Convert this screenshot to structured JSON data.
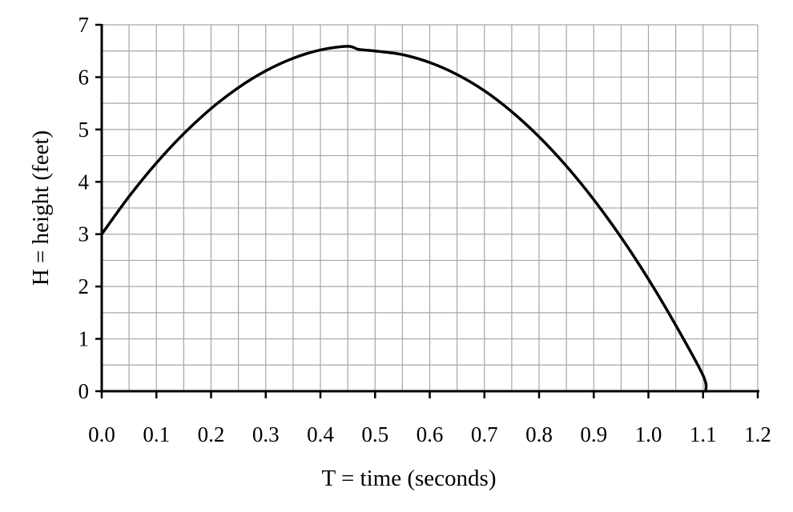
{
  "chart_data": {
    "type": "line",
    "title": "",
    "xlabel": "T = time (seconds)",
    "ylabel": "H = height (feet)",
    "xlim": [
      0,
      1.2
    ],
    "ylim": [
      0,
      7
    ],
    "x_ticks": [
      "0.0",
      "0.1",
      "0.2",
      "0.3",
      "0.4",
      "0.5",
      "0.6",
      "0.7",
      "0.8",
      "0.9",
      "1.0",
      "1.1",
      "1.2"
    ],
    "y_ticks": [
      "0",
      "1",
      "2",
      "3",
      "4",
      "5",
      "6",
      "7"
    ],
    "grid": true,
    "minor_grid": {
      "x_step": 0.05,
      "y_step": 0.5
    },
    "series": [
      {
        "color": "#000000",
        "x": [
          0.0,
          0.05,
          0.1,
          0.15,
          0.2,
          0.25,
          0.3,
          0.35,
          0.4,
          0.45,
          0.47,
          0.5,
          0.55,
          0.6,
          0.65,
          0.7,
          0.75,
          0.8,
          0.85,
          0.9,
          0.95,
          1.0,
          1.05,
          1.1,
          1.105
        ],
        "y": [
          3.0,
          3.72,
          4.36,
          4.92,
          5.4,
          5.8,
          6.12,
          6.36,
          6.52,
          6.59,
          6.53,
          6.5,
          6.43,
          6.28,
          6.05,
          5.74,
          5.34,
          4.86,
          4.3,
          3.66,
          2.94,
          2.14,
          1.26,
          0.3,
          0.0
        ]
      }
    ]
  }
}
